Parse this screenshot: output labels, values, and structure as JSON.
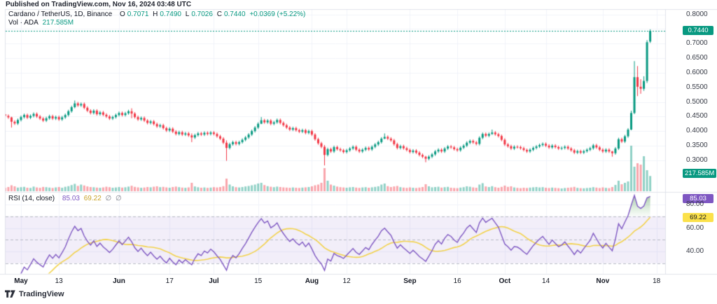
{
  "published_bar": {
    "text": "Published on TradingView.com, Nov 16, 2024 03:48 UTC"
  },
  "legend": {
    "title": "Cardano / TetherUS, 1D, Binance",
    "ohlc": [
      {
        "label": "O",
        "value": "0.7071"
      },
      {
        "label": "H",
        "value": "0.7490"
      },
      {
        "label": "L",
        "value": "0.7026"
      },
      {
        "label": "C",
        "value": "0.7440"
      }
    ],
    "change": "+0.0369 (+5.22%)",
    "volume_label": "Vol · ADA",
    "volume_value": "217.585M"
  },
  "rsi_legend": {
    "title": "RSI (14, close)",
    "value": "85.03",
    "ma_value": "69.22",
    "empty1": "∅",
    "empty2": "∅"
  },
  "axes": {
    "price_ticks": [
      {
        "label": "0.8000",
        "v": 0.8
      },
      {
        "label": "0.7000",
        "v": 0.7
      },
      {
        "label": "0.6500",
        "v": 0.65
      },
      {
        "label": "0.6000",
        "v": 0.6
      },
      {
        "label": "0.5500",
        "v": 0.55
      },
      {
        "label": "0.5000",
        "v": 0.5
      },
      {
        "label": "0.4500",
        "v": 0.45
      },
      {
        "label": "0.4000",
        "v": 0.4
      },
      {
        "label": "0.3500",
        "v": 0.35
      },
      {
        "label": "0.3000",
        "v": 0.3
      }
    ],
    "price_badge": {
      "label": "0.7440",
      "v": 0.744
    },
    "volume_badge": {
      "label": "217.585M"
    },
    "rsi_ticks": [
      {
        "label": "80.00",
        "v": 80
      },
      {
        "label": "60.00",
        "v": 60
      },
      {
        "label": "40.00",
        "v": 40
      }
    ],
    "rsi_badge": {
      "label": "85.03",
      "v": 85.03
    },
    "rsi_ma_badge": {
      "label": "69.22",
      "v": 69.22
    },
    "time_ticks": [
      {
        "label": "May",
        "i": 6,
        "major": true
      },
      {
        "label": "13",
        "i": 18,
        "major": false
      },
      {
        "label": "Jun",
        "i": 37,
        "major": true
      },
      {
        "label": "17",
        "i": 53,
        "major": false
      },
      {
        "label": "Jul",
        "i": 67,
        "major": true
      },
      {
        "label": "15",
        "i": 81,
        "major": false
      },
      {
        "label": "Aug",
        "i": 98,
        "major": true
      },
      {
        "label": "12",
        "i": 109,
        "major": false
      },
      {
        "label": "Sep",
        "i": 129,
        "major": true
      },
      {
        "label": "16",
        "i": 144,
        "major": false
      },
      {
        "label": "Oct",
        "i": 159,
        "major": true
      },
      {
        "label": "14",
        "i": 172,
        "major": false
      },
      {
        "label": "Nov",
        "i": 190,
        "major": true
      },
      {
        "label": "18",
        "i": 207,
        "major": false
      }
    ]
  },
  "footer": {
    "brand": "TradingView"
  },
  "chart_data": {
    "type": "candlestick+volume+rsi",
    "title": "Cardano / TetherUS, 1D, Binance",
    "interval": "1D",
    "current_price": 0.744,
    "change_abs": 0.0369,
    "change_pct": 5.22,
    "last_ohlc": {
      "o": 0.7071,
      "h": 0.749,
      "l": 0.7026,
      "c": 0.744
    },
    "volume_current_m": 217.585,
    "rsi_period": 14,
    "rsi_source": "close",
    "rsi_current": 85.03,
    "rsi_ma_current": 69.22,
    "levels": {
      "overbought": 70,
      "mid": 50,
      "oversold": 30
    },
    "price_axis_range": [
      0.3,
      0.8
    ],
    "rsi_axis_ticks": [
      40,
      60,
      80
    ],
    "first_open": 0.462,
    "closes": [
      0.458,
      0.452,
      0.447,
      0.432,
      0.426,
      0.438,
      0.448,
      0.455,
      0.446,
      0.452,
      0.459,
      0.45,
      0.443,
      0.436,
      0.444,
      0.451,
      0.443,
      0.448,
      0.44,
      0.447,
      0.455,
      0.468,
      0.482,
      0.495,
      0.488,
      0.493,
      0.48,
      0.47,
      0.462,
      0.47,
      0.458,
      0.464,
      0.456,
      0.45,
      0.443,
      0.448,
      0.455,
      0.462,
      0.455,
      0.461,
      0.468,
      0.46,
      0.448,
      0.44,
      0.445,
      0.436,
      0.428,
      0.433,
      0.424,
      0.416,
      0.42,
      0.41,
      0.402,
      0.408,
      0.398,
      0.39,
      0.396,
      0.388,
      0.392,
      0.385,
      0.378,
      0.386,
      0.392,
      0.388,
      0.394,
      0.39,
      0.395,
      0.39,
      0.382,
      0.374,
      0.36,
      0.342,
      0.355,
      0.362,
      0.356,
      0.362,
      0.37,
      0.378,
      0.388,
      0.4,
      0.412,
      0.425,
      0.437,
      0.43,
      0.436,
      0.425,
      0.43,
      0.438,
      0.428,
      0.42,
      0.412,
      0.405,
      0.41,
      0.403,
      0.398,
      0.403,
      0.394,
      0.4,
      0.388,
      0.372,
      0.358,
      0.346,
      0.318,
      0.338,
      0.33,
      0.345,
      0.338,
      0.334,
      0.328,
      0.334,
      0.34,
      0.346,
      0.336,
      0.33,
      0.336,
      0.342,
      0.337,
      0.346,
      0.354,
      0.362,
      0.374,
      0.38,
      0.374,
      0.368,
      0.355,
      0.342,
      0.348,
      0.341,
      0.335,
      0.328,
      0.333,
      0.326,
      0.318,
      0.312,
      0.305,
      0.312,
      0.32,
      0.33,
      0.336,
      0.33,
      0.34,
      0.347,
      0.344,
      0.338,
      0.334,
      0.343,
      0.35,
      0.36,
      0.366,
      0.361,
      0.356,
      0.377,
      0.39,
      0.384,
      0.39,
      0.395,
      0.389,
      0.383,
      0.37,
      0.354,
      0.348,
      0.34,
      0.346,
      0.345,
      0.341,
      0.335,
      0.33,
      0.336,
      0.342,
      0.347,
      0.352,
      0.356,
      0.35,
      0.344,
      0.35,
      0.345,
      0.34,
      0.342,
      0.346,
      0.34,
      0.334,
      0.326,
      0.331,
      0.326,
      0.331,
      0.336,
      0.341,
      0.351,
      0.344,
      0.336,
      0.33,
      0.336,
      0.33,
      0.324,
      0.34,
      0.372,
      0.364,
      0.382,
      0.405,
      0.462,
      0.585,
      0.552,
      0.545,
      0.572,
      0.705,
      0.744
    ],
    "volumes_m": [
      55,
      48,
      60,
      85,
      70,
      52,
      58,
      62,
      50,
      47,
      66,
      54,
      49,
      61,
      58,
      52,
      47,
      55,
      60,
      50,
      63,
      72,
      88,
      105,
      76,
      95,
      82,
      68,
      60,
      57,
      52,
      49,
      55,
      64,
      58,
      50,
      54,
      60,
      52,
      57,
      66,
      78,
      62,
      55,
      49,
      53,
      60,
      56,
      64,
      70,
      58,
      62,
      55,
      50,
      60,
      66,
      58,
      52,
      49,
      55,
      120,
      68,
      57,
      50,
      54,
      48,
      52,
      58,
      54,
      60,
      72,
      180,
      95,
      70,
      58,
      54,
      60,
      68,
      75,
      85,
      95,
      110,
      120,
      88,
      72,
      64,
      58,
      66,
      60,
      55,
      52,
      49,
      54,
      50,
      47,
      52,
      56,
      60,
      70,
      85,
      95,
      120,
      330,
      150,
      95,
      80,
      66,
      58,
      54,
      50,
      56,
      60,
      52,
      48,
      54,
      58,
      50,
      56,
      62,
      70,
      95,
      110,
      72,
      60,
      68,
      75,
      58,
      52,
      48,
      55,
      50,
      46,
      52,
      60,
      100,
      70,
      56,
      60,
      64,
      52,
      58,
      62,
      50,
      46,
      44,
      52,
      58,
      70,
      64,
      55,
      50,
      95,
      115,
      68,
      60,
      72,
      58,
      50,
      62,
      80,
      62,
      70,
      54,
      48,
      44,
      50,
      46,
      52,
      56,
      60,
      54,
      58,
      50,
      46,
      52,
      48,
      44,
      40,
      46,
      50,
      54,
      62,
      48,
      44,
      42,
      46,
      50,
      58,
      52,
      46,
      55,
      48,
      44,
      60,
      90,
      150,
      100,
      120,
      140,
      650,
      350,
      400,
      380,
      500,
      300,
      217.585
    ],
    "open_overrides": {
      "205": 0.7071
    },
    "wick_overrides": {
      "3": [
        0.449,
        0.412
      ],
      "23": [
        0.505,
        0.478
      ],
      "41": [
        0.478,
        0.444
      ],
      "60": [
        0.392,
        0.362
      ],
      "71": [
        0.368,
        0.298
      ],
      "82": [
        0.448,
        0.424
      ],
      "102": [
        0.352,
        0.282
      ],
      "121": [
        0.392,
        0.372
      ],
      "134": [
        0.315,
        0.293
      ],
      "155": [
        0.405,
        0.387
      ],
      "193": [
        0.332,
        0.312
      ],
      "199": [
        0.47,
        0.403
      ],
      "200": [
        0.64,
        0.458
      ],
      "201": [
        0.623,
        0.52
      ],
      "202": [
        0.578,
        0.528
      ],
      "203": [
        0.588,
        0.538
      ],
      "204": [
        0.712,
        0.565
      ],
      "205": [
        0.749,
        0.7026
      ]
    },
    "colors": {
      "up": "#089981",
      "down": "#f23645",
      "vol_up": "rgba(8,153,129,0.45)",
      "vol_down": "rgba(242,54,69,0.45)",
      "rsi_line": "#7e57c2",
      "rsi_ma_line": "#f2d24b",
      "rsi_band_fill": "rgba(126,87,194,0.10)",
      "rsi_dashed": "#b7bac4",
      "overbought_fill_top": "rgba(46,125,50,0.50)",
      "overbought_fill_bottom": "rgba(120,190,120,0.05)",
      "grid": "#f0f3fa",
      "border": "#e0e3eb",
      "current_price_line": "#089981"
    }
  }
}
